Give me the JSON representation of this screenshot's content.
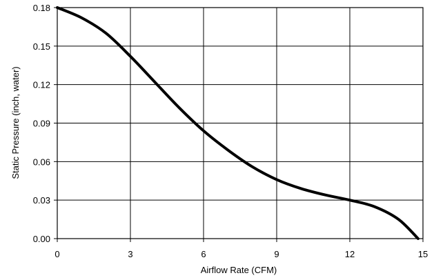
{
  "chart_data": {
    "type": "line",
    "title": "",
    "xlabel": "Airflow Rate (CFM)",
    "ylabel": "Static Pressure (inch, water)",
    "xlim": [
      0,
      15
    ],
    "ylim": [
      0,
      0.18
    ],
    "x_ticks": [
      "0",
      "3",
      "6",
      "9",
      "12",
      "15"
    ],
    "y_ticks": [
      "0.00",
      "0.03",
      "0.06",
      "0.09",
      "0.12",
      "0.15",
      "0.18"
    ],
    "grid": true,
    "legend": "none",
    "series": [
      {
        "color": "#000000",
        "x": [
          0,
          1,
          2,
          3,
          4,
          5,
          6,
          7,
          8,
          9,
          10,
          11,
          12,
          13,
          14,
          14.8
        ],
        "y": [
          0.18,
          0.172,
          0.16,
          0.142,
          0.122,
          0.102,
          0.084,
          0.069,
          0.056,
          0.046,
          0.039,
          0.034,
          0.03,
          0.025,
          0.015,
          0.0
        ]
      }
    ]
  }
}
